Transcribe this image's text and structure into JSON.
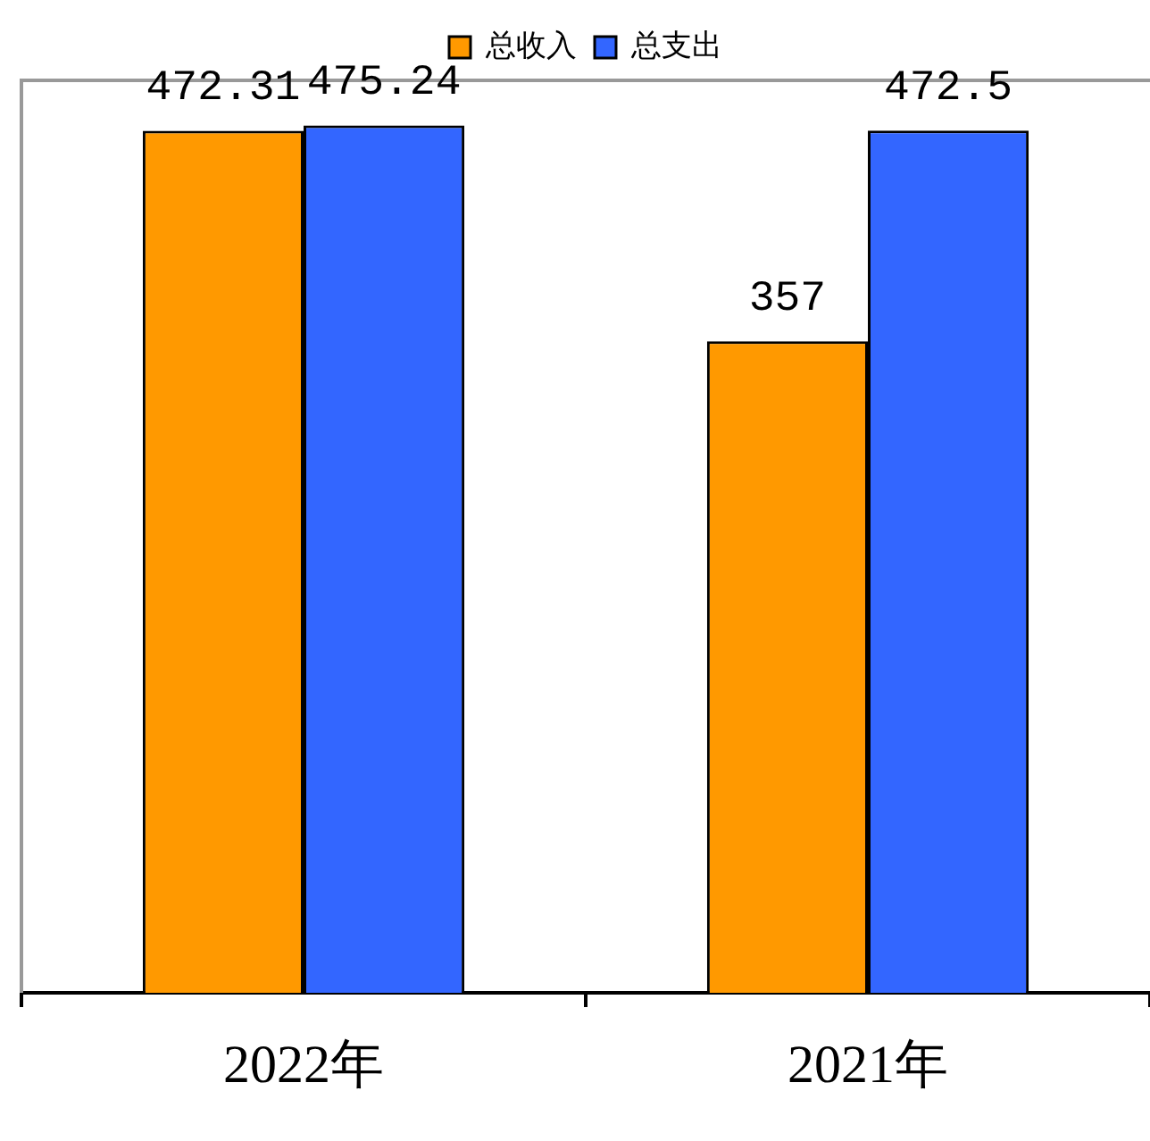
{
  "chart_data": {
    "type": "bar",
    "categories": [
      "2022年",
      "2021年"
    ],
    "series": [
      {
        "name": "总收入",
        "color": "#ff9900",
        "values": [
          472.31,
          357
        ]
      },
      {
        "name": "总支出",
        "color": "#3366ff",
        "values": [
          475.24,
          472.5
        ]
      }
    ],
    "ylim": [
      0,
      500
    ],
    "tick_labels": "x",
    "data_labels": true,
    "legend": "top",
    "grid": false
  }
}
